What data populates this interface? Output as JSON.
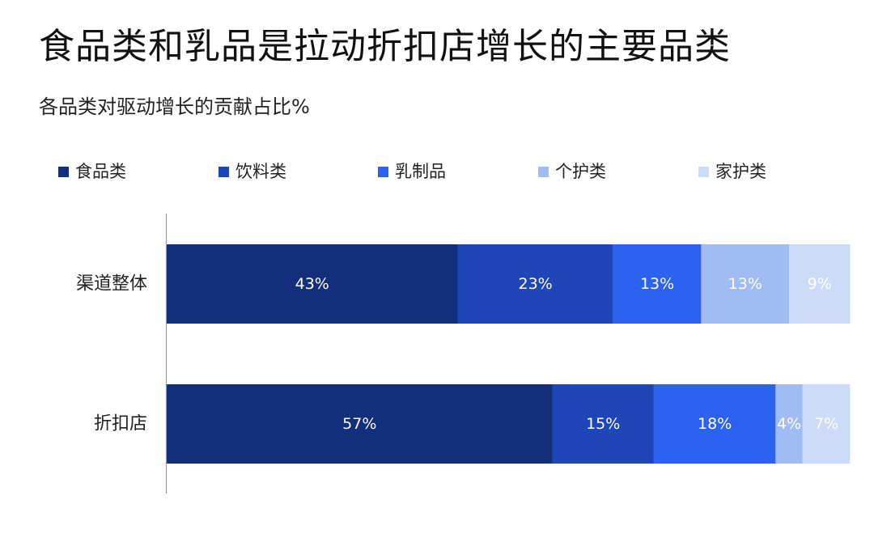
{
  "title": "食品类和乳品是拉动折扣店增长的主要品类",
  "subtitle": "各品类对驱动增长的贡献占比%",
  "colors": {
    "食品类": "#132f7c",
    "饮料类": "#1e46b8",
    "乳制品": "#2b63f0",
    "个护类": "#a0bcf3",
    "家护类": "#ccdbf8",
    "axis": "#9a9a9a",
    "label_text": "#ffffff"
  },
  "chart_data": {
    "type": "bar",
    "orientation": "horizontal",
    "stacked": true,
    "legend_position": "top",
    "grid": false,
    "xlim": [
      0,
      100
    ],
    "categories": [
      "渠道整体",
      "折扣店"
    ],
    "series": [
      {
        "name": "食品类",
        "values": [
          43,
          57
        ],
        "labels": [
          "43%",
          "57%"
        ]
      },
      {
        "name": "饮料类",
        "values": [
          23,
          15
        ],
        "labels": [
          "23%",
          "15%"
        ]
      },
      {
        "name": "乳制品",
        "values": [
          13,
          18
        ],
        "labels": [
          "13%",
          "18%"
        ]
      },
      {
        "name": "个护类",
        "values": [
          13,
          4
        ],
        "labels": [
          "13%",
          "4%"
        ]
      },
      {
        "name": "家护类",
        "values": [
          9,
          7
        ],
        "labels": [
          "9%",
          "7%"
        ]
      }
    ]
  }
}
